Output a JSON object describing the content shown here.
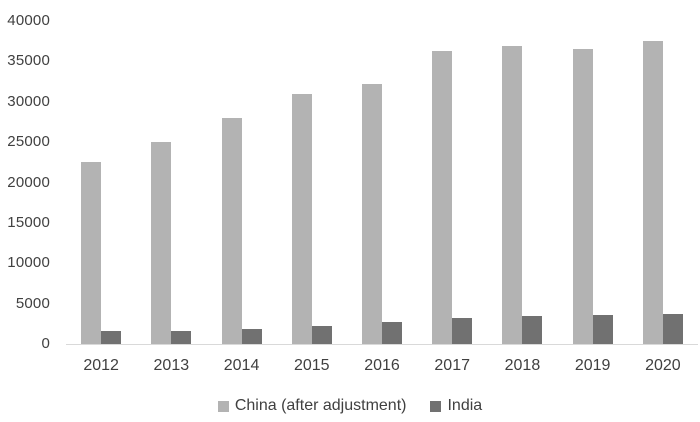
{
  "chart_data": {
    "type": "bar",
    "title": "",
    "xlabel": "",
    "ylabel": "",
    "categories": [
      "2012",
      "2013",
      "2014",
      "2015",
      "2016",
      "2017",
      "2018",
      "2019",
      "2020"
    ],
    "series": [
      {
        "name": "China (after adjustment)",
        "key": "china",
        "color": "#b3b3b3",
        "values": [
          22600,
          25000,
          28000,
          31000,
          32200,
          36300,
          36900,
          36500,
          37500
        ]
      },
      {
        "name": "India",
        "key": "india",
        "color": "#717171",
        "values": [
          1600,
          1600,
          1900,
          2200,
          2700,
          3200,
          3500,
          3600,
          3700
        ]
      }
    ],
    "ylim": [
      0,
      40000
    ],
    "ytick_step": 5000,
    "yticks": [
      "0",
      "5000",
      "10000",
      "15000",
      "20000",
      "25000",
      "30000",
      "35000",
      "40000"
    ],
    "grid": false,
    "legend_position": "bottom"
  },
  "colors": {
    "axis_line": "#d9d9d9",
    "text": "#404040",
    "background": "#ffffff"
  }
}
